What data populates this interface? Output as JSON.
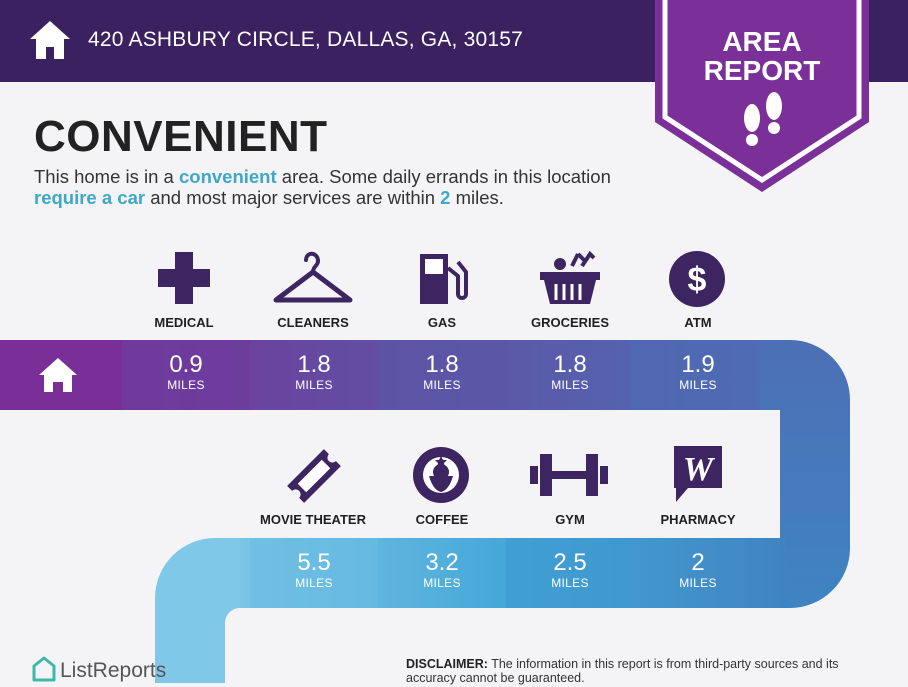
{
  "header": {
    "address": "420 ASHBURY CIRCLE, DALLAS, GA, 30157"
  },
  "badge": {
    "line1": "AREA",
    "line2": "REPORT",
    "icon": "footprints-icon"
  },
  "title": "CONVENIENT",
  "description": {
    "p1": "This home is in a ",
    "h1": "convenient",
    "p2": " area. Some daily errands in this location ",
    "h2": "require a car",
    "p3": " and most major services are within ",
    "h3": "2",
    "p4": " miles."
  },
  "services_row1": [
    {
      "label": "MEDICAL",
      "icon": "medical-cross-icon",
      "value": "0.9",
      "unit": "MILES"
    },
    {
      "label": "CLEANERS",
      "icon": "hanger-icon",
      "value": "1.8",
      "unit": "MILES"
    },
    {
      "label": "GAS",
      "icon": "gas-pump-icon",
      "value": "1.8",
      "unit": "MILES"
    },
    {
      "label": "GROCERIES",
      "icon": "grocery-basket-icon",
      "value": "1.8",
      "unit": "MILES"
    },
    {
      "label": "ATM",
      "icon": "dollar-icon",
      "value": "1.9",
      "unit": "MILES"
    }
  ],
  "services_row2": [
    {
      "label": "MOVIE THEATER",
      "icon": "ticket-icon",
      "value": "5.5",
      "unit": "MILES"
    },
    {
      "label": "COFFEE",
      "icon": "starbucks-logo-icon",
      "value": "3.2",
      "unit": "MILES"
    },
    {
      "label": "GYM",
      "icon": "dumbbell-icon",
      "value": "2.5",
      "unit": "MILES"
    },
    {
      "label": "PHARMACY",
      "icon": "walgreens-logo-icon",
      "value": "2",
      "unit": "MILES"
    }
  ],
  "footer": {
    "brand": "ListReports",
    "disclaimer_label": "DISCLAIMER:",
    "disclaimer_text": " The information in this report is from third-party sources and its accuracy cannot be guaranteed."
  },
  "colors": {
    "header": "#3b2160",
    "badge": "#7b2f99",
    "icon": "#3c2560",
    "highlight": "#3fa7c8"
  }
}
